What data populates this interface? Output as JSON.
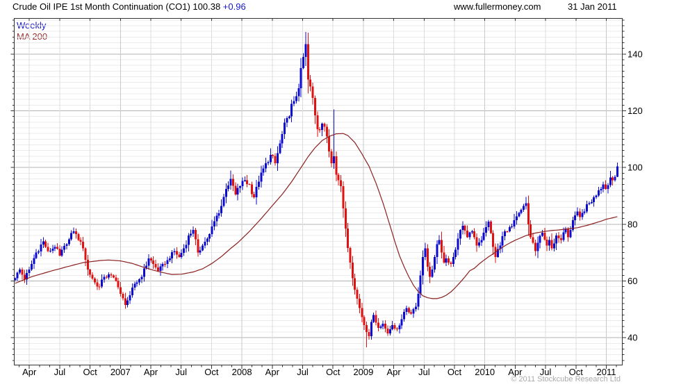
{
  "header": {
    "title": "Crude Oil IPE 1st Month Continuation (CO1)",
    "last_price": "100.38",
    "change": "+0.96",
    "website": "www.fullermoney.com",
    "date": "31 Jan 2011"
  },
  "legend": {
    "series1": "Weekly",
    "series2": "MA 200"
  },
  "footer": {
    "copyright": "© 2011 Stockcube Research Ltd"
  },
  "colors": {
    "up": "#0b0bd0",
    "down": "#e01111",
    "ma": "#8b2020",
    "legend_weekly": "#1414cc",
    "legend_ma": "#993333",
    "change_text": "#1414cc",
    "grid_minor": "#ebebeb",
    "grid_major": "#b3b3b3",
    "grid_vert_quarter": "#dcdcdc",
    "grid_vert_year": "#c9c9c9",
    "axis": "#333333",
    "copyright_text": "#aaaaaa"
  },
  "chart_data": {
    "type": "candlestick",
    "title": "Crude Oil IPE 1st Month Continuation (CO1)",
    "interval": "weekly",
    "overlay": "MA 200",
    "last_price": 100.38,
    "last_change": 0.96,
    "y_axis": {
      "tick_labels": [
        40,
        60,
        80,
        100,
        120,
        140
      ],
      "minor_step": 2,
      "major_step": 20,
      "range": [
        30.4,
        152.6
      ]
    },
    "x_labels": [
      {
        "t": "Apr",
        "q": -3
      },
      {
        "t": "Jul",
        "q": -2
      },
      {
        "t": "Oct",
        "q": -1
      },
      {
        "t": "2007",
        "q": 0
      },
      {
        "t": "Apr",
        "q": 1
      },
      {
        "t": "Jul",
        "q": 2
      },
      {
        "t": "Oct",
        "q": 3
      },
      {
        "t": "2008",
        "q": 4
      },
      {
        "t": "Apr",
        "q": 5
      },
      {
        "t": "Jul",
        "q": 6
      },
      {
        "t": "Oct",
        "q": 7
      },
      {
        "t": "2009",
        "q": 8
      },
      {
        "t": "Apr",
        "q": 9
      },
      {
        "t": "Jul",
        "q": 10
      },
      {
        "t": "Oct",
        "q": 11
      },
      {
        "t": "2010",
        "q": 12
      },
      {
        "t": "Apr",
        "q": 13
      },
      {
        "t": "Jul",
        "q": 14
      },
      {
        "t": "Oct",
        "q": 15
      },
      {
        "t": "2011",
        "q": 16
      }
    ],
    "weeks_total": 258,
    "jan2007_week_index": 45,
    "close_keypoints": [
      [
        0,
        61.0
      ],
      [
        2,
        64.0
      ],
      [
        4,
        60.5
      ],
      [
        6,
        64.0
      ],
      [
        9,
        70.0
      ],
      [
        12,
        74.0
      ],
      [
        14,
        70.5
      ],
      [
        17,
        72.0
      ],
      [
        19,
        69.0
      ],
      [
        22,
        73.0
      ],
      [
        25,
        77.5
      ],
      [
        27,
        74.5
      ],
      [
        29,
        71.5
      ],
      [
        31,
        64.0
      ],
      [
        34,
        59.5
      ],
      [
        36,
        58.0
      ],
      [
        38,
        61.5
      ],
      [
        41,
        62.0
      ],
      [
        43,
        60.0
      ],
      [
        45,
        55.5
      ],
      [
        47,
        51.5
      ],
      [
        49,
        55.0
      ],
      [
        51,
        59.0
      ],
      [
        54,
        61.5
      ],
      [
        57,
        68.0
      ],
      [
        59,
        66.0
      ],
      [
        61,
        63.5
      ],
      [
        64,
        66.0
      ],
      [
        66,
        68.0
      ],
      [
        68,
        70.5
      ],
      [
        70,
        68.5
      ],
      [
        72,
        71.5
      ],
      [
        74,
        76.0
      ],
      [
        76,
        78.0
      ],
      [
        78,
        70.0
      ],
      [
        80,
        72.5
      ],
      [
        83,
        76.5
      ],
      [
        86,
        83.0
      ],
      [
        88,
        86.5
      ],
      [
        90,
        92.5
      ],
      [
        92,
        96.0
      ],
      [
        94,
        90.5
      ],
      [
        96,
        93.5
      ],
      [
        98,
        95.5
      ],
      [
        100,
        94.0
      ],
      [
        102,
        89.5
      ],
      [
        104,
        95.0
      ],
      [
        107,
        101.5
      ],
      [
        109,
        104.5
      ],
      [
        111,
        101.5
      ],
      [
        113,
        108.5
      ],
      [
        116,
        117.5
      ],
      [
        119,
        123.5
      ],
      [
        121,
        128.0
      ],
      [
        123,
        139.0
      ],
      [
        124,
        143.5
      ],
      [
        125,
        131.0
      ],
      [
        127,
        124.5
      ],
      [
        129,
        113.5
      ],
      [
        131,
        115.5
      ],
      [
        133,
        111.0
      ],
      [
        135,
        101.5
      ],
      [
        136,
        104.0
      ],
      [
        137,
        97.5
      ],
      [
        139,
        93.5
      ],
      [
        141,
        78.5
      ],
      [
        143,
        66.5
      ],
      [
        145,
        57.0
      ],
      [
        147,
        50.5
      ],
      [
        149,
        44.5
      ],
      [
        150,
        42.0
      ],
      [
        151,
        40.5
      ],
      [
        152,
        45.5
      ],
      [
        153,
        48.0
      ],
      [
        155,
        43.5
      ],
      [
        157,
        45.0
      ],
      [
        159,
        41.5
      ],
      [
        161,
        44.5
      ],
      [
        163,
        43.0
      ],
      [
        165,
        46.5
      ],
      [
        167,
        50.5
      ],
      [
        169,
        48.5
      ],
      [
        171,
        51.0
      ],
      [
        172,
        55.5
      ],
      [
        173,
        62.0
      ],
      [
        174,
        68.5
      ],
      [
        175,
        71.5
      ],
      [
        176,
        65.0
      ],
      [
        177,
        61.5
      ],
      [
        178,
        64.0
      ],
      [
        180,
        73.0
      ],
      [
        181,
        74.5
      ],
      [
        183,
        66.5
      ],
      [
        184,
        68.0
      ],
      [
        186,
        66.0
      ],
      [
        188,
        71.0
      ],
      [
        190,
        78.0
      ],
      [
        191,
        79.5
      ],
      [
        193,
        75.5
      ],
      [
        195,
        77.5
      ],
      [
        197,
        72.5
      ],
      [
        199,
        74.5
      ],
      [
        201,
        79.0
      ],
      [
        202,
        81.0
      ],
      [
        204,
        72.0
      ],
      [
        205,
        68.5
      ],
      [
        207,
        72.5
      ],
      [
        209,
        77.5
      ],
      [
        211,
        79.0
      ],
      [
        213,
        81.5
      ],
      [
        215,
        84.0
      ],
      [
        217,
        86.5
      ],
      [
        218,
        87.5
      ],
      [
        219,
        80.0
      ],
      [
        220,
        75.5
      ],
      [
        222,
        70.5
      ],
      [
        223,
        73.5
      ],
      [
        225,
        77.0
      ],
      [
        227,
        72.5
      ],
      [
        228,
        74.5
      ],
      [
        229,
        71.5
      ],
      [
        231,
        76.0
      ],
      [
        233,
        74.5
      ],
      [
        235,
        78.5
      ],
      [
        236,
        75.5
      ],
      [
        238,
        81.5
      ],
      [
        240,
        84.5
      ],
      [
        241,
        82.5
      ],
      [
        243,
        84.5
      ],
      [
        245,
        87.5
      ],
      [
        247,
        89.5
      ],
      [
        249,
        92.0
      ],
      [
        251,
        94.0
      ],
      [
        252,
        92.5
      ],
      [
        254,
        96.5
      ],
      [
        255,
        95.5
      ],
      [
        257,
        100.38
      ]
    ],
    "ma_keypoints": [
      [
        0,
        59.2
      ],
      [
        7,
        61.5
      ],
      [
        14,
        63.2
      ],
      [
        22,
        65.0
      ],
      [
        29,
        66.5
      ],
      [
        36,
        67.2
      ],
      [
        40,
        67.4
      ],
      [
        45,
        67.1
      ],
      [
        50,
        66.2
      ],
      [
        55,
        64.8
      ],
      [
        60,
        63.6
      ],
      [
        65,
        62.6
      ],
      [
        67,
        62.3
      ],
      [
        71,
        62.4
      ],
      [
        76,
        63.2
      ],
      [
        80,
        64.3
      ],
      [
        84,
        66.2
      ],
      [
        88,
        68.6
      ],
      [
        92,
        71.5
      ],
      [
        95,
        73.5
      ],
      [
        100,
        77.5
      ],
      [
        105,
        82.0
      ],
      [
        110,
        86.8
      ],
      [
        114,
        90.6
      ],
      [
        118,
        95.0
      ],
      [
        122,
        100.0
      ],
      [
        125,
        103.8
      ],
      [
        128,
        107.0
      ],
      [
        131,
        109.5
      ],
      [
        134,
        111.0
      ],
      [
        137,
        111.9
      ],
      [
        140,
        112.0
      ],
      [
        142,
        111.3
      ],
      [
        145,
        108.8
      ],
      [
        148,
        104.8
      ],
      [
        151,
        100.5
      ],
      [
        154,
        94.5
      ],
      [
        157,
        87.5
      ],
      [
        160,
        79.5
      ],
      [
        162,
        74.0
      ],
      [
        164,
        69.0
      ],
      [
        166,
        65.0
      ],
      [
        168,
        61.5
      ],
      [
        170,
        58.5
      ],
      [
        172,
        56.3
      ],
      [
        174,
        54.8
      ],
      [
        176,
        54.1
      ],
      [
        178,
        53.8
      ],
      [
        180,
        53.8
      ],
      [
        182,
        54.2
      ],
      [
        184,
        55.0
      ],
      [
        186,
        56.2
      ],
      [
        188,
        57.8
      ],
      [
        190,
        59.6
      ],
      [
        192,
        61.5
      ],
      [
        194,
        63.6
      ],
      [
        196,
        64.5
      ],
      [
        198,
        66.0
      ],
      [
        200,
        67.3
      ],
      [
        202,
        68.5
      ],
      [
        204,
        69.6
      ],
      [
        206,
        70.8
      ],
      [
        208,
        71.9
      ],
      [
        210,
        72.9
      ],
      [
        212,
        73.8
      ],
      [
        214,
        74.6
      ],
      [
        216,
        75.3
      ],
      [
        218,
        76.0
      ],
      [
        220,
        76.5
      ],
      [
        222,
        76.9
      ],
      [
        224,
        77.2
      ],
      [
        226,
        77.5
      ],
      [
        228,
        77.7
      ],
      [
        230,
        77.9
      ],
      [
        232,
        78.0
      ],
      [
        234,
        78.2
      ],
      [
        236,
        78.4
      ],
      [
        238,
        78.6
      ],
      [
        240,
        78.8
      ],
      [
        242,
        79.2
      ],
      [
        244,
        79.6
      ],
      [
        246,
        80.1
      ],
      [
        248,
        80.6
      ],
      [
        250,
        81.1
      ],
      [
        252,
        81.7
      ],
      [
        254,
        82.1
      ],
      [
        256,
        82.5
      ],
      [
        257,
        82.7
      ]
    ],
    "wick_overrides": [
      {
        "week": 47,
        "low": 50.2
      },
      {
        "week": 92,
        "high": 99.0
      },
      {
        "week": 124,
        "high": 147.8
      },
      {
        "week": 136,
        "high": 120.5
      },
      {
        "week": 150,
        "low": 36.6
      },
      {
        "week": 205,
        "low": 66.4
      },
      {
        "week": 218,
        "high": 89.7
      },
      {
        "week": 257,
        "high": 101.8,
        "low": 97.5
      }
    ]
  }
}
